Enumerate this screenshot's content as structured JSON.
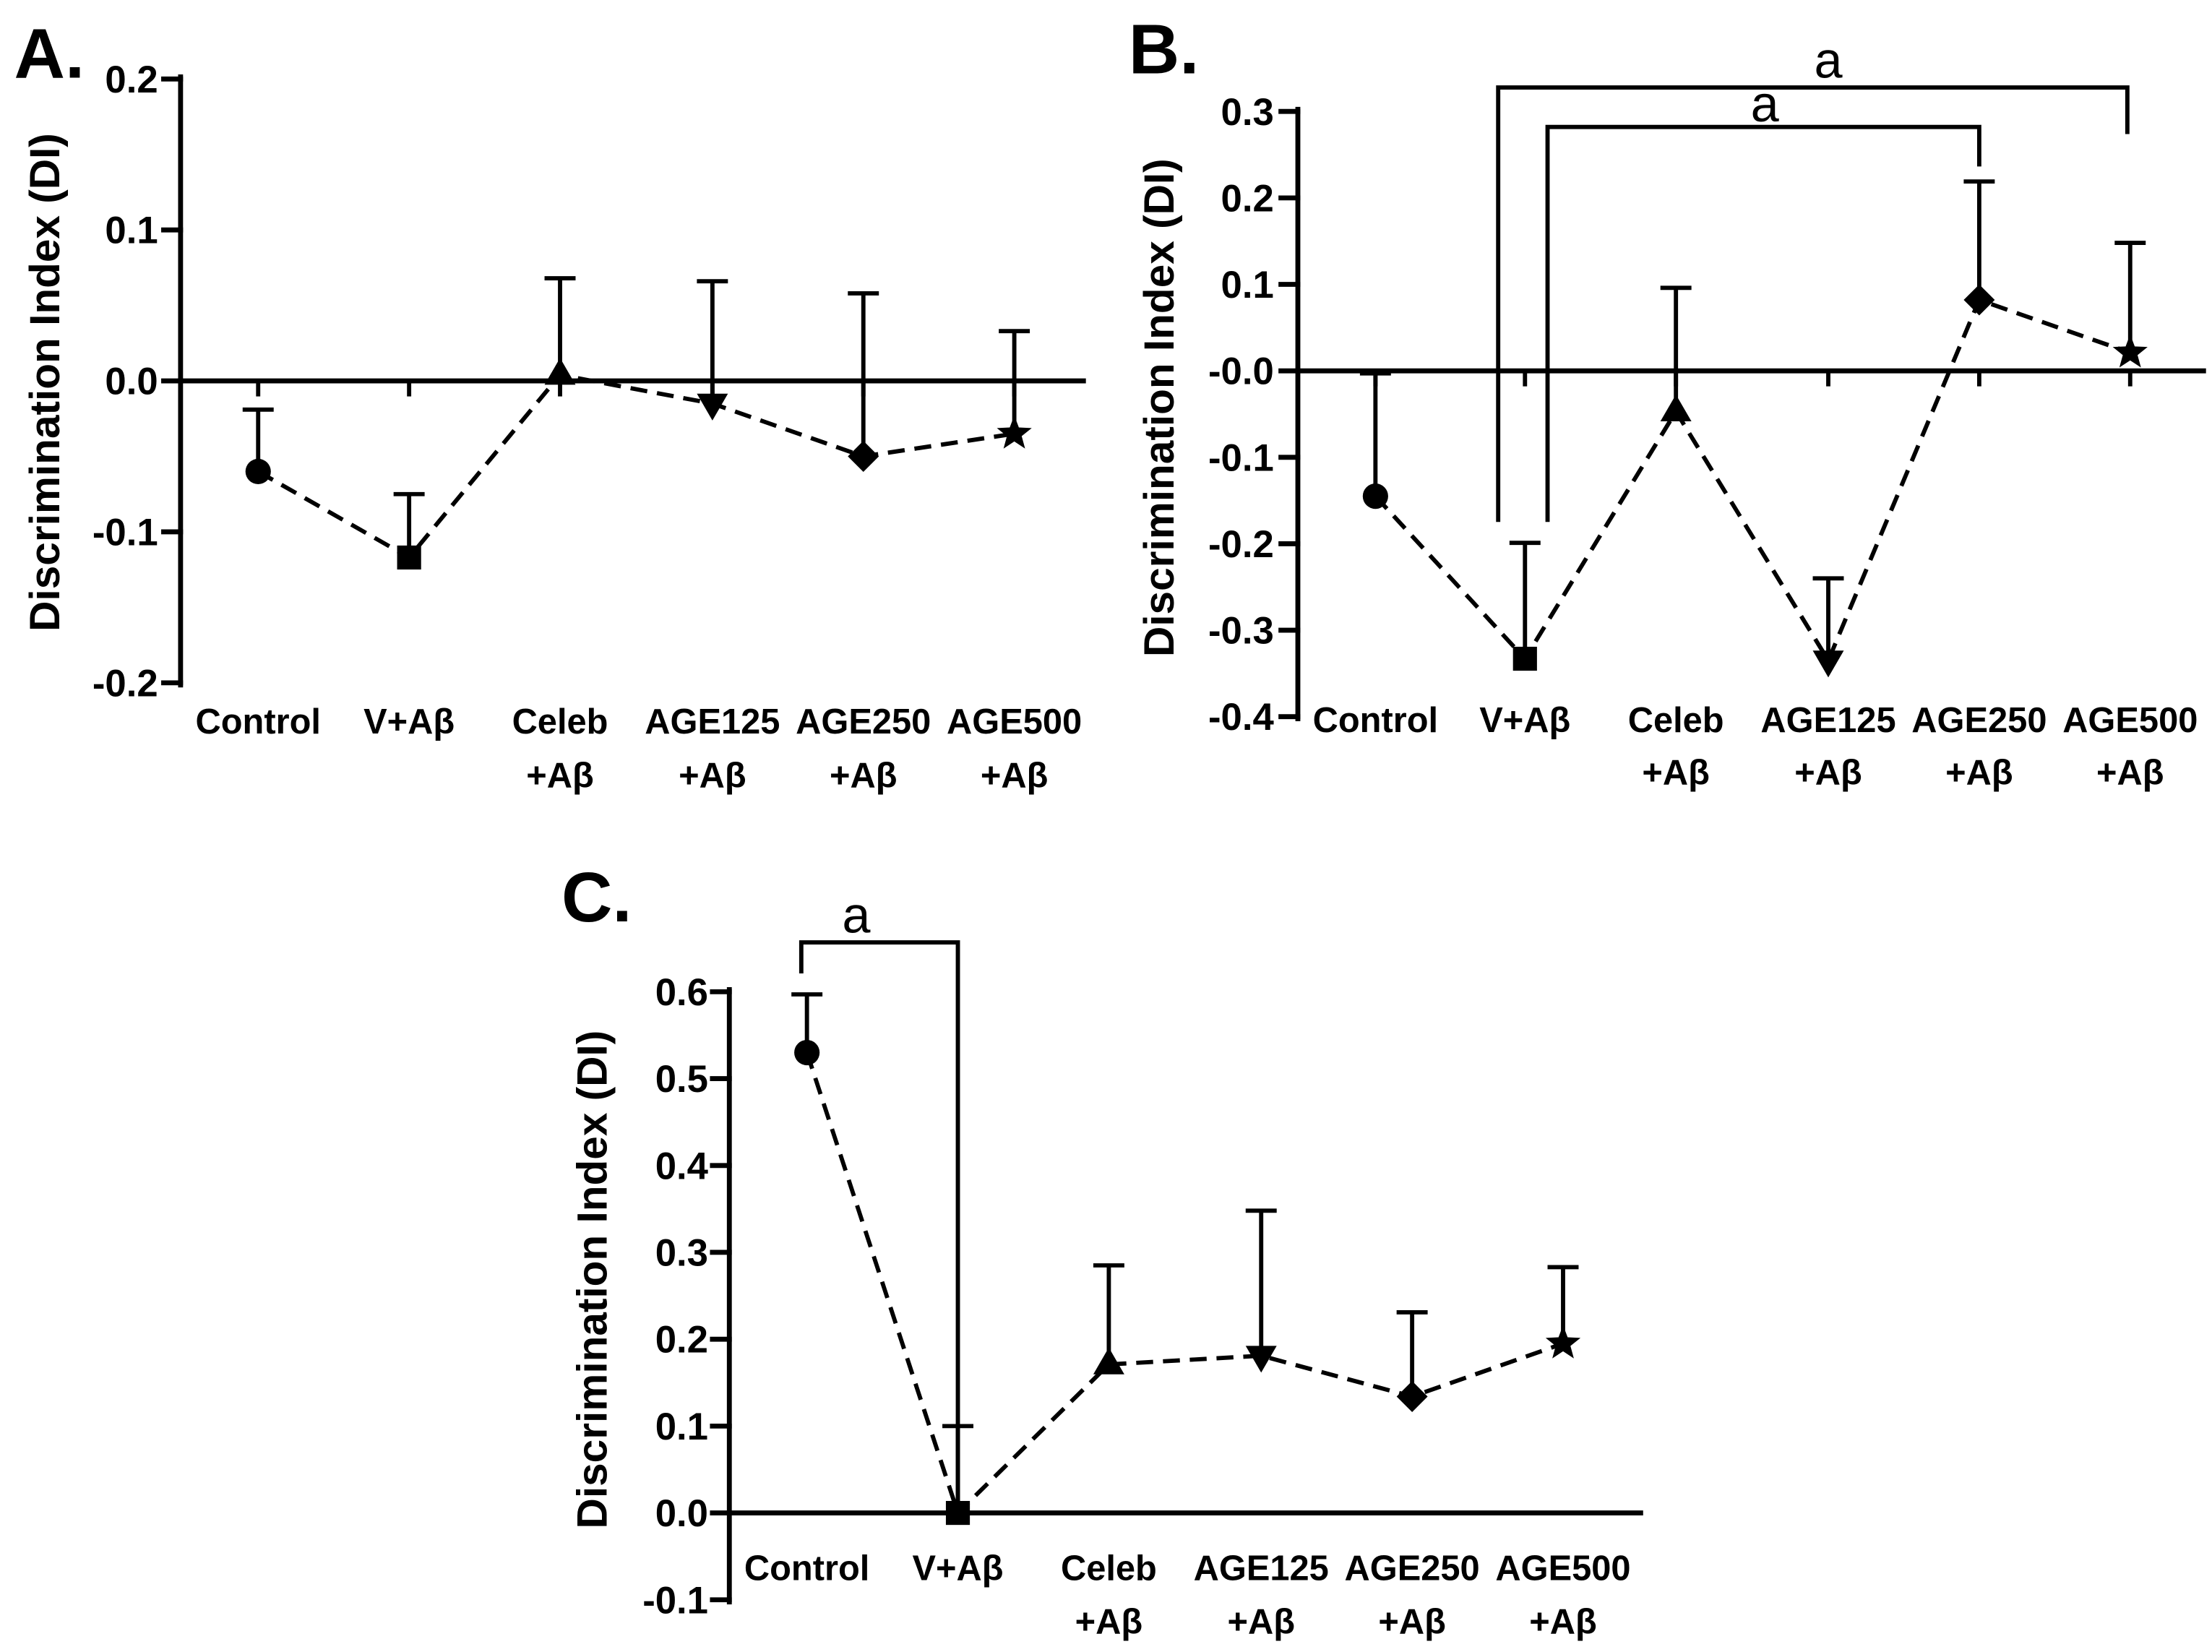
{
  "chart_data": [
    {
      "type": "line",
      "panel_label": "A.",
      "xlabel": "",
      "ylabel": "Discrimination Index (DI)",
      "ylim": [
        -0.2,
        0.2
      ],
      "yticks": [
        0.2,
        0.1,
        0.0,
        -0.1,
        -0.2
      ],
      "ytick_labels": [
        "0.2",
        "0.1",
        "0.0",
        "-0.1",
        "-0.2"
      ],
      "categories": [
        [
          "Control"
        ],
        [
          "V+Aβ"
        ],
        [
          "Celeb",
          "+Aβ"
        ],
        [
          "AGE125",
          "+Aβ"
        ],
        [
          "AGE250",
          "+Aβ"
        ],
        [
          "AGE500",
          "+Aβ"
        ]
      ],
      "markers": [
        "circle",
        "square",
        "triangle-up",
        "triangle-down",
        "diamond",
        "star"
      ],
      "values": [
        -0.06,
        -0.117,
        0.004,
        -0.015,
        -0.05,
        -0.035
      ],
      "error_upper": [
        0.041,
        0.042,
        0.064,
        0.081,
        0.108,
        0.068
      ],
      "significance": []
    },
    {
      "type": "line",
      "panel_label": "B.",
      "xlabel": "",
      "ylabel": "Discrimination Index (DI)",
      "ylim": [
        -0.4,
        0.3
      ],
      "yticks": [
        0.3,
        0.2,
        0.1,
        0.0,
        -0.1,
        -0.2,
        -0.3,
        -0.4
      ],
      "ytick_labels": [
        "0.3",
        "0.2",
        "0.1",
        "-0.0",
        "-0.1",
        "-0.2",
        "-0.3",
        "-0.4"
      ],
      "categories": [
        [
          "Control"
        ],
        [
          "V+Aβ"
        ],
        [
          "Celeb",
          "+Aβ"
        ],
        [
          "AGE125",
          "+Aβ"
        ],
        [
          "AGE250",
          "+Aβ"
        ],
        [
          "AGE500",
          "+Aβ"
        ]
      ],
      "markers": [
        "circle",
        "square",
        "triangle-up",
        "triangle-down",
        "diamond",
        "star"
      ],
      "values": [
        -0.145,
        -0.333,
        -0.047,
        -0.335,
        0.082,
        0.021
      ],
      "error_upper": [
        0.142,
        0.134,
        0.143,
        0.095,
        0.137,
        0.127
      ],
      "significance": [
        {
          "groups": [
            1,
            5
          ],
          "label": "a"
        },
        {
          "groups": [
            1,
            4
          ],
          "label": "a"
        }
      ]
    },
    {
      "type": "line",
      "panel_label": "C.",
      "xlabel": "",
      "ylabel": "Discrimination Index (DI)",
      "ylim": [
        -0.1,
        0.6
      ],
      "yticks": [
        0.6,
        0.5,
        0.4,
        0.3,
        0.2,
        0.1,
        0.0,
        -0.1
      ],
      "ytick_labels": [
        "0.6",
        "0.5",
        "0.4",
        "0.3",
        "0.2",
        "0.1",
        "0.0",
        "-0.1"
      ],
      "categories": [
        [
          "Control"
        ],
        [
          "V+Aβ"
        ],
        [
          "Celeb",
          "+Aβ"
        ],
        [
          "AGE125",
          "+Aβ"
        ],
        [
          "AGE250",
          "+Aβ"
        ],
        [
          "AGE500",
          "+Aβ"
        ]
      ],
      "markers": [
        "circle",
        "square",
        "triangle-up",
        "triangle-down",
        "diamond",
        "star"
      ],
      "values": [
        0.53,
        0.0,
        0.171,
        0.181,
        0.134,
        0.195
      ],
      "error_upper": [
        0.067,
        0.1,
        0.114,
        0.167,
        0.097,
        0.088
      ],
      "significance": [
        {
          "groups": [
            0,
            1
          ],
          "label": "a"
        }
      ]
    }
  ]
}
